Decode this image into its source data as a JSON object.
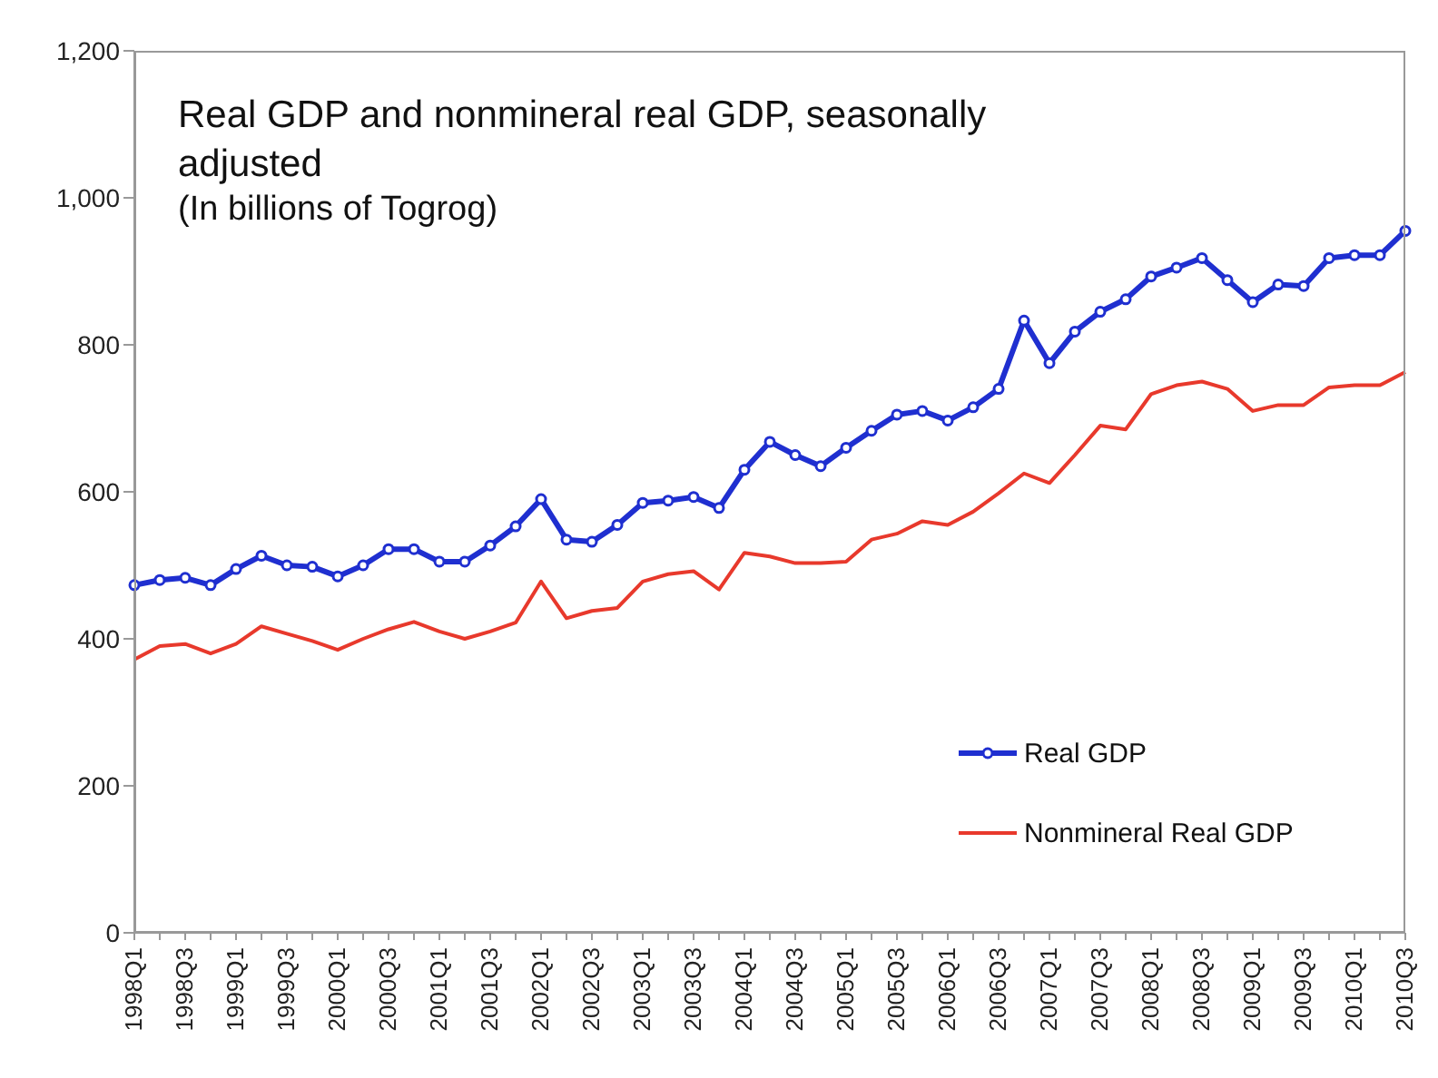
{
  "chart_data": {
    "type": "line",
    "title": "Real GDP and nonmineral real GDP, seasonally adjusted",
    "subtitle": "(In billions of Togrog)",
    "categories": [
      "1998Q1",
      null,
      "1998Q3",
      null,
      "1999Q1",
      null,
      "1999Q3",
      null,
      "2000Q1",
      null,
      "2000Q3",
      null,
      "2001Q1",
      null,
      "2001Q3",
      null,
      "2002Q1",
      null,
      "2002Q3",
      null,
      "2003Q1",
      null,
      "2003Q3",
      null,
      "2004Q1",
      null,
      "2004Q3",
      null,
      "2005Q1",
      null,
      "2005Q3",
      null,
      "2006Q1",
      null,
      "2006Q3",
      null,
      "2007Q1",
      null,
      "2007Q3",
      null,
      "2008Q1",
      null,
      "2008Q3",
      null,
      "2009Q1",
      null,
      "2009Q3",
      null,
      "2010Q1",
      null,
      "2010Q3"
    ],
    "series": [
      {
        "name": "Real GDP",
        "color": "#1f2fd0",
        "marker": "circle",
        "values": [
          473,
          480,
          483,
          473,
          495,
          513,
          500,
          498,
          485,
          500,
          522,
          522,
          505,
          505,
          527,
          553,
          590,
          535,
          532,
          555,
          585,
          588,
          593,
          578,
          630,
          668,
          650,
          635,
          660,
          683,
          705,
          710,
          697,
          715,
          740,
          833,
          775,
          818,
          845,
          862,
          893,
          905,
          918,
          888,
          858,
          882,
          880,
          918,
          922,
          922,
          955
        ]
      },
      {
        "name": "Nonmineral Real GDP",
        "color": "#e8392c",
        "marker": "none",
        "values": [
          372,
          390,
          393,
          380,
          393,
          417,
          407,
          397,
          385,
          400,
          413,
          423,
          410,
          400,
          410,
          422,
          478,
          428,
          438,
          442,
          478,
          488,
          492,
          467,
          517,
          512,
          503,
          503,
          505,
          535,
          543,
          560,
          555,
          573,
          598,
          625,
          612,
          650,
          690,
          685,
          733,
          745,
          750,
          740,
          710,
          718,
          718,
          742,
          745,
          745,
          763
        ]
      }
    ],
    "ylim": [
      0,
      1200
    ],
    "yticks": [
      0,
      200,
      400,
      600,
      800,
      {
        "value": 1000,
        "label": "1,000"
      },
      {
        "value": 1200,
        "label": "1,200"
      }
    ],
    "legend": "bottom right",
    "line_style": "solid"
  }
}
